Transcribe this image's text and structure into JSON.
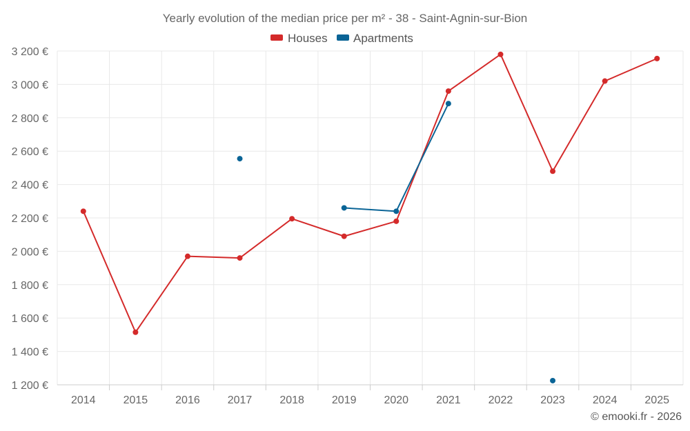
{
  "chart_data": {
    "type": "line",
    "title": "Yearly evolution of the median price per m² - 38 - Saint-Agnin-sur-Bion",
    "categories": [
      "2014",
      "2015",
      "2016",
      "2017",
      "2018",
      "2019",
      "2020",
      "2021",
      "2022",
      "2023",
      "2024",
      "2025"
    ],
    "ylim": [
      1200,
      3200
    ],
    "yticks": [
      1200,
      1400,
      1600,
      1800,
      2000,
      2200,
      2400,
      2600,
      2800,
      3000,
      3200
    ],
    "ytick_labels": [
      "1 200 €",
      "1 400 €",
      "1 600 €",
      "1 800 €",
      "2 000 €",
      "2 200 €",
      "2 400 €",
      "2 600 €",
      "2 800 €",
      "3 000 €",
      "3 200 €"
    ],
    "grid": true,
    "legend_position": "top-center",
    "series": [
      {
        "name": "Houses",
        "color": "#d42a2a",
        "values": [
          2240,
          1515,
          1970,
          1960,
          2195,
          2090,
          2180,
          2960,
          3180,
          2480,
          3020,
          3155
        ]
      },
      {
        "name": "Apartments",
        "color": "#0a6496",
        "values": [
          null,
          null,
          null,
          2555,
          null,
          2260,
          2240,
          2885,
          null,
          1225,
          null,
          null
        ]
      }
    ]
  },
  "credit": "© emooki.fr - 2026"
}
